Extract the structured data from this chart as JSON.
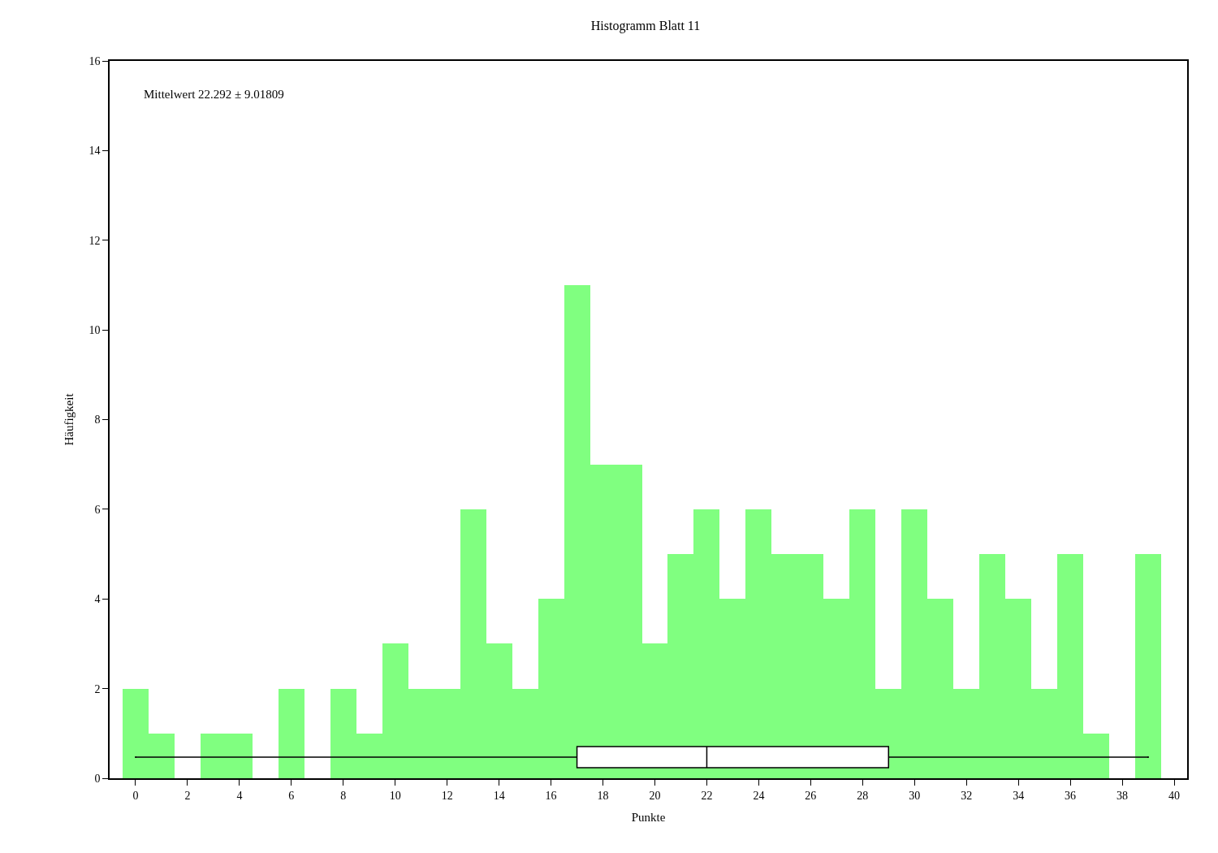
{
  "chart_data": [
    {
      "type": "histogram",
      "title": "Histogramm Blatt 11",
      "xlabel": "Punkte",
      "ylabel": "Häufigkeit",
      "annotations": [
        "Mittelwert 22.292 ± 9.01809"
      ],
      "color": "#80ff80",
      "bins": [
        -0.5,
        0.5,
        1.5,
        2.5,
        3.5,
        4.5,
        5.5,
        6.5,
        7.5,
        8.5,
        9.5,
        10.5,
        11.5,
        12.5,
        13.5,
        14.5,
        15.5,
        16.5,
        17.5,
        18.5,
        19.5,
        20.5,
        21.5,
        22.5,
        23.5,
        24.5,
        25.5,
        26.5,
        27.5,
        28.5,
        29.5,
        30.5,
        31.5,
        32.5,
        33.5,
        34.5,
        35.5,
        36.5,
        37.5,
        38.5,
        39.5
      ],
      "values": [
        2,
        1,
        0,
        1,
        1,
        0,
        2,
        0,
        2,
        1,
        3,
        2,
        2,
        6,
        3,
        2,
        4,
        11,
        7,
        7,
        3,
        5,
        6,
        4,
        6,
        5,
        5,
        4,
        6,
        2,
        6,
        4,
        2,
        5,
        4,
        2,
        5,
        1,
        0,
        5
      ],
      "xlim": [
        -1,
        40.5
      ],
      "xticks": [
        0,
        2,
        4,
        6,
        8,
        10,
        12,
        14,
        16,
        18,
        20,
        22,
        24,
        26,
        28,
        30,
        32,
        34,
        36,
        38,
        40
      ],
      "ylim": [
        0,
        16
      ],
      "yticks": [
        0,
        2,
        4,
        6,
        8,
        10,
        12,
        14,
        16
      ]
    },
    {
      "type": "box",
      "orientation": "horizontal",
      "color": "#000000",
      "categories": [
        null
      ],
      "boxes": [
        {
          "low": 0,
          "q1": 17,
          "median": 22,
          "q3": 29,
          "high": 39
        }
      ],
      "xlim": [
        -1,
        40.5
      ]
    }
  ]
}
